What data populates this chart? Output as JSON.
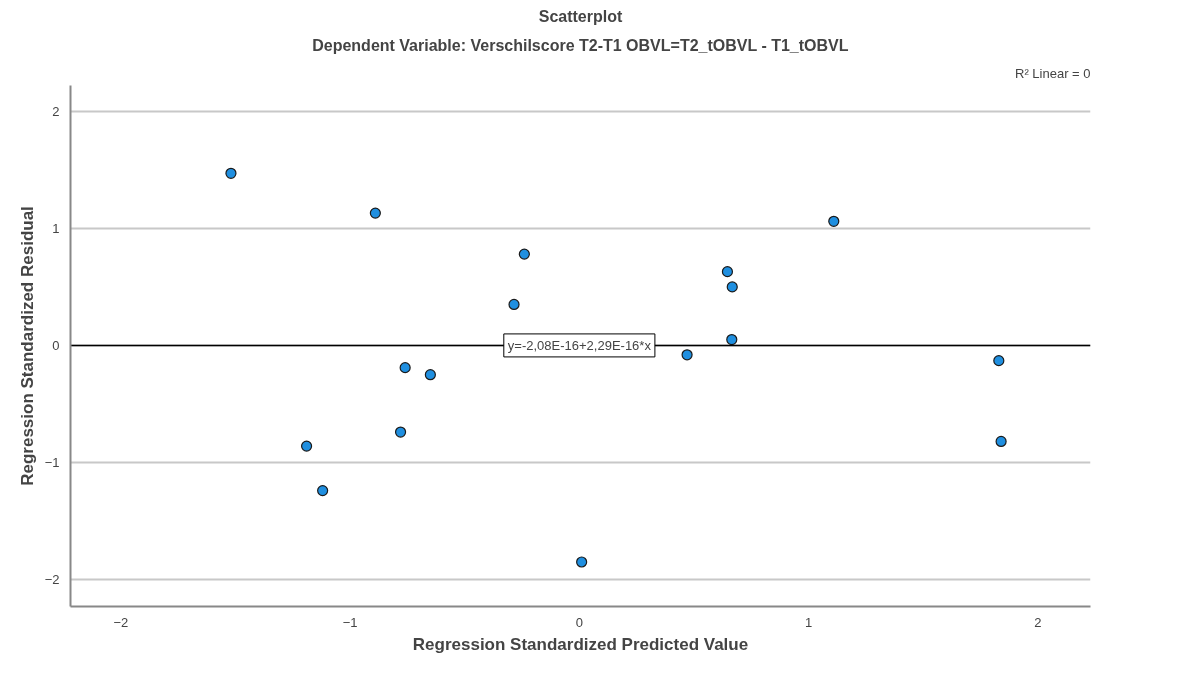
{
  "chart_data": {
    "type": "scatter",
    "title": "Scatterplot",
    "subtitle": "Dependent Variable: Verschilscore T2-T1 OBVL=T2_tOBVL - T1_tOBVL",
    "xlabel": "Regression Standardized Predicted Value",
    "ylabel": "Regression Standardized Residual",
    "x": [
      -1.52,
      -0.89,
      -0.24,
      -0.285,
      -0.76,
      -0.65,
      -0.78,
      -1.19,
      -1.12,
      0.01,
      1.11,
      0.646,
      0.667,
      0.665,
      0.47,
      1.83,
      1.84
    ],
    "series": [
      {
        "color": "#1f8fe0",
        "values": [
          1.47,
          1.13,
          0.78,
          0.35,
          -0.19,
          -0.25,
          -0.74,
          -0.86,
          -1.24,
          -1.85,
          1.06,
          0.63,
          0.5,
          0.05,
          -0.08,
          -0.13,
          -0.82
        ]
      },
      {
        "type": "line",
        "marker": "none",
        "color": "#000000",
        "x": [
          -2.22,
          2.23
        ],
        "values": [
          0,
          0
        ]
      }
    ],
    "annotations": [
      {
        "text": "y=-2,08E-16+2,29E-16*x",
        "x": 0,
        "y": 0
      },
      "R² Linear = 0"
    ],
    "xlim": [
      -2.22,
      2.23
    ],
    "ylim": [
      -2.23,
      2.22
    ],
    "xticks": [
      -2,
      -1,
      0,
      1,
      2
    ],
    "yticks": [
      -2,
      -1,
      0,
      1,
      2
    ],
    "grid": "y",
    "marker": "circle"
  }
}
